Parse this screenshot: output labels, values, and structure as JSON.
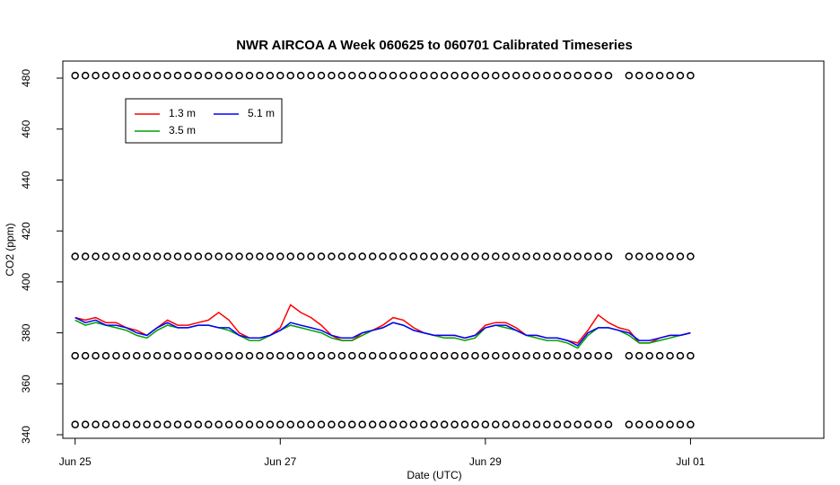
{
  "chart_data": {
    "type": "line",
    "title": "NWR AIRCOA A  Week 060625 to 060701  Calibrated Timeseries",
    "x_label": "Date (UTC)",
    "y_label": "CO2 (ppm)",
    "xlim": [
      -0.12,
      7.3
    ],
    "ylim": [
      338.6,
      486.7
    ],
    "xticks": [
      {
        "value": 0,
        "label": "Jun 25"
      },
      {
        "value": 2,
        "label": "Jun 27"
      },
      {
        "value": 4,
        "label": "Jun 29"
      },
      {
        "value": 6,
        "label": "Jul 01"
      }
    ],
    "yticks": [
      340,
      360,
      380,
      400,
      420,
      440,
      460,
      480
    ],
    "legend": "top-left",
    "x": [
      0,
      0.1,
      0.2,
      0.3,
      0.4,
      0.5,
      0.6,
      0.7,
      0.8,
      0.9,
      1,
      1.1,
      1.2,
      1.3,
      1.4,
      1.5,
      1.6,
      1.7,
      1.8,
      1.9,
      2,
      2.1,
      2.2,
      2.3,
      2.4,
      2.5,
      2.6,
      2.7,
      2.8,
      2.9,
      3,
      3.1,
      3.2,
      3.3,
      3.4,
      3.5,
      3.6,
      3.7,
      3.8,
      3.9,
      4,
      4.1,
      4.2,
      4.3,
      4.4,
      4.5,
      4.6,
      4.7,
      4.8,
      4.9,
      5,
      5.1,
      5.2,
      5.3,
      5.4,
      5.5,
      5.6,
      5.7,
      5.8,
      5.9,
      6
    ],
    "series": [
      {
        "name": "1.3 m",
        "color": "#ff0000",
        "values": [
          386,
          385,
          386,
          384,
          384,
          382,
          381,
          379,
          382,
          385,
          383,
          383,
          384,
          385,
          388,
          385,
          380,
          378,
          378,
          379,
          382,
          391,
          388,
          386,
          383,
          379,
          377,
          377,
          380,
          381,
          383,
          386,
          385,
          382,
          380,
          379,
          379,
          379,
          378,
          379,
          383,
          384,
          384,
          382,
          379,
          379,
          378,
          378,
          377,
          376,
          381,
          387,
          384,
          382,
          381,
          376,
          376,
          378,
          379,
          379,
          380
        ]
      },
      {
        "name": "3.5 m",
        "color": "#00a000",
        "values": [
          385,
          383,
          384,
          383,
          382,
          381,
          379,
          378,
          381,
          383,
          382,
          382,
          383,
          383,
          382,
          381,
          379,
          377,
          377,
          379,
          381,
          383,
          382,
          381,
          380,
          378,
          377,
          377,
          379,
          381,
          382,
          384,
          383,
          381,
          380,
          379,
          378,
          378,
          377,
          378,
          382,
          383,
          382,
          381,
          379,
          378,
          377,
          377,
          376,
          374,
          379,
          382,
          382,
          381,
          379,
          376,
          376,
          377,
          378,
          379,
          380
        ]
      },
      {
        "name": "5.1 m",
        "color": "#0000ff",
        "values": [
          386,
          384,
          385,
          383,
          383,
          382,
          380,
          379,
          382,
          384,
          382,
          382,
          383,
          383,
          382,
          382,
          379,
          378,
          378,
          379,
          381,
          384,
          383,
          382,
          381,
          379,
          378,
          378,
          380,
          381,
          382,
          384,
          383,
          381,
          380,
          379,
          379,
          379,
          378,
          379,
          382,
          383,
          383,
          381,
          379,
          379,
          378,
          378,
          377,
          375,
          380,
          382,
          382,
          381,
          380,
          377,
          377,
          378,
          379,
          379,
          380
        ]
      }
    ],
    "standards": {
      "color": "#000000",
      "series": [
        {
          "values": [
            344,
            344,
            344,
            344,
            344,
            344,
            344,
            344,
            344,
            344,
            344,
            344,
            344,
            344,
            344,
            344,
            344,
            344,
            344,
            344,
            344,
            344,
            344,
            344,
            344,
            344,
            344,
            344,
            344,
            344,
            344,
            344,
            344,
            344,
            344,
            344,
            344,
            344,
            344,
            344,
            344,
            344,
            344,
            344,
            344,
            344,
            344,
            344,
            344,
            344,
            344,
            344,
            344,
            null,
            344,
            344,
            344,
            344,
            344,
            344,
            344
          ]
        },
        {
          "values": [
            371,
            371,
            371,
            371,
            371,
            371,
            371,
            371,
            371,
            371,
            371,
            371,
            371,
            371,
            371,
            371,
            371,
            371,
            371,
            371,
            371,
            371,
            371,
            371,
            371,
            371,
            371,
            371,
            371,
            371,
            371,
            371,
            371,
            371,
            371,
            371,
            371,
            371,
            371,
            371,
            371,
            371,
            371,
            371,
            371,
            371,
            371,
            371,
            371,
            371,
            371,
            371,
            371,
            null,
            371,
            371,
            371,
            371,
            371,
            371,
            371
          ]
        },
        {
          "values": [
            410,
            410,
            410,
            410,
            410,
            410,
            410,
            410,
            410,
            410,
            410,
            410,
            410,
            410,
            410,
            410,
            410,
            410,
            410,
            410,
            410,
            410,
            410,
            410,
            410,
            410,
            410,
            410,
            410,
            410,
            410,
            410,
            410,
            410,
            410,
            410,
            410,
            410,
            410,
            410,
            410,
            410,
            410,
            410,
            410,
            410,
            410,
            410,
            410,
            410,
            410,
            410,
            410,
            null,
            410,
            410,
            410,
            410,
            410,
            410,
            410
          ]
        },
        {
          "values": [
            481,
            481,
            481,
            481,
            481,
            481,
            481,
            481,
            481,
            481,
            481,
            481,
            481,
            481,
            481,
            481,
            481,
            481,
            481,
            481,
            481,
            481,
            481,
            481,
            481,
            481,
            481,
            481,
            481,
            481,
            481,
            481,
            481,
            481,
            481,
            481,
            481,
            481,
            481,
            481,
            481,
            481,
            481,
            481,
            481,
            481,
            481,
            481,
            481,
            481,
            481,
            481,
            481,
            null,
            481,
            481,
            481,
            481,
            481,
            481,
            481
          ]
        }
      ]
    }
  }
}
